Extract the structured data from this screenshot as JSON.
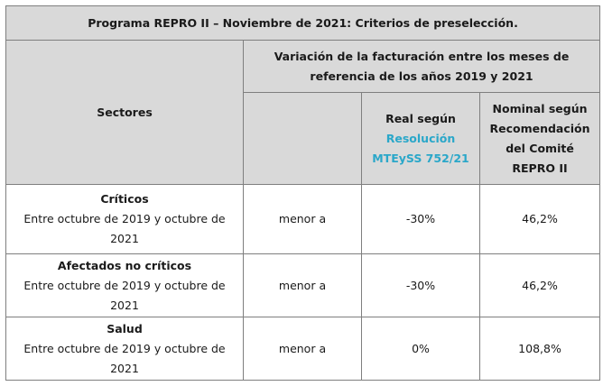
{
  "table": {
    "title": "Programa REPRO II – Noviembre de 2021: Criterios de preselección.",
    "col_sectores": "Sectores",
    "col_variacion": "Variación de la facturación entre los meses de referencia de los años 2019 y 2021",
    "col_real_prefix": "Real según",
    "col_real_link": "Resolución MTEySS 752/21",
    "col_nominal": "Nominal según Recomendación del Comité REPRO II",
    "rows": [
      {
        "name": "Críticos",
        "range": "Entre octubre de 2019 y octubre de 2021",
        "cond": "menor a",
        "real": "-30%",
        "nominal": "46,2%"
      },
      {
        "name": "Afectados no críticos",
        "range": "Entre octubre de 2019 y octubre de 2021",
        "cond": "menor a",
        "real": "-30%",
        "nominal": "46,2%"
      },
      {
        "name": "Salud",
        "range": "Entre octubre de 2019 y octubre de 2021",
        "cond": "menor a",
        "real": "0%",
        "nominal": "108,8%"
      }
    ]
  },
  "colors": {
    "header_bg": "#d9d9d9",
    "link": "#2aa7c9",
    "border": "#7f7f7f"
  }
}
